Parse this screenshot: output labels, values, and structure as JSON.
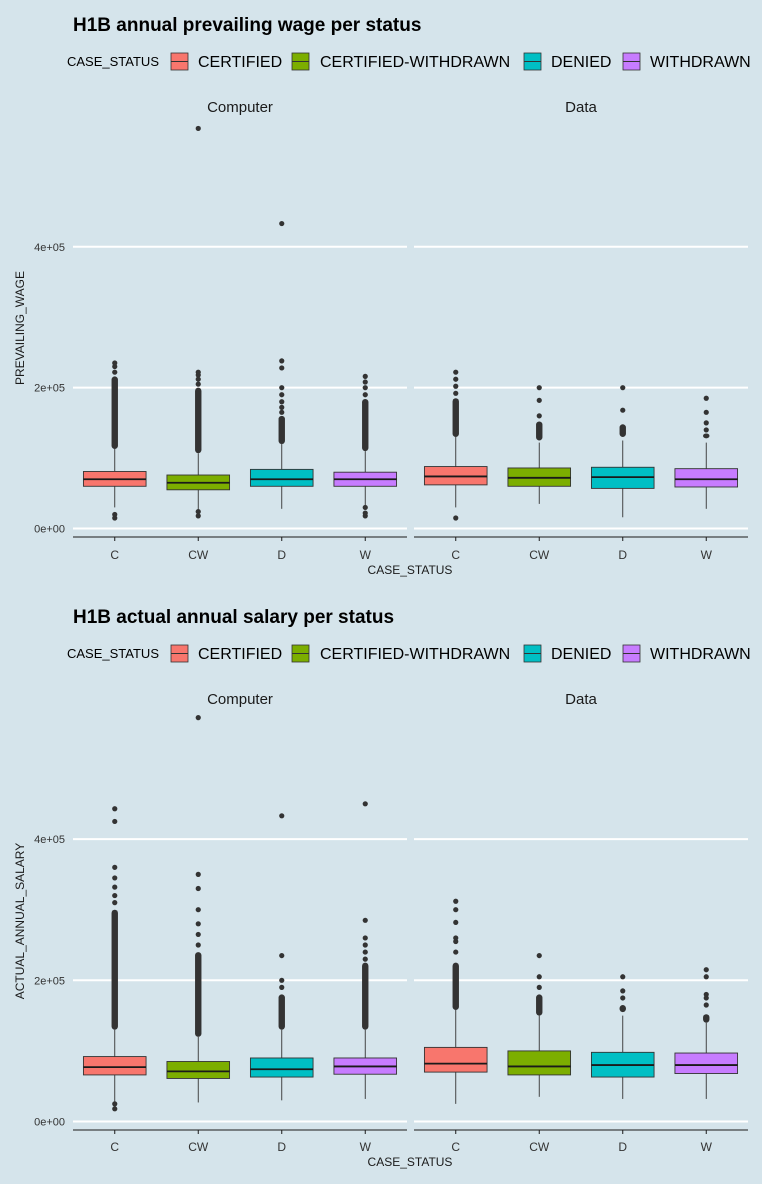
{
  "colors": {
    "background": "#d5e4eb",
    "grid": "#ffffff",
    "axis": "#1a1a1a",
    "outlier": "#333333",
    "CERTIFIED": "#f8766d",
    "CERTIFIED-WITHDRAWN": "#7cae00",
    "DENIED": "#00bfc4",
    "WITHDRAWN": "#c77cff"
  },
  "chart_data": [
    {
      "type": "box",
      "title": "H1B annual prevailing wage per status",
      "xlabel": "CASE_STATUS",
      "ylabel": "PREVAILING_WAGE",
      "legend": {
        "title": "CASE_STATUS",
        "position": "top",
        "entries": [
          "CERTIFIED",
          "CERTIFIED-WITHDRAWN",
          "DENIED",
          "WITHDRAWN"
        ]
      },
      "categories": [
        "C",
        "CW",
        "D",
        "W"
      ],
      "y_ticks": [
        {
          "value": 0,
          "label": "0e+00"
        },
        {
          "value": 200000,
          "label": "2e+05"
        },
        {
          "value": 400000,
          "label": "4e+05"
        }
      ],
      "ylim": [
        -12000,
        580000
      ],
      "grid": true,
      "facets": [
        {
          "label": "Computer",
          "boxes": [
            {
              "status": "CERTIFIED",
              "q1": 60000,
              "median": 70000,
              "q3": 81000,
              "whisker_low": 30000,
              "whisker_high": 113000,
              "outlier_band": [
                113000,
                216000
              ],
              "outliers": [
                15000,
                20000,
                222000,
                230000,
                235000
              ]
            },
            {
              "status": "CERTIFIED-WITHDRAWN",
              "q1": 55000,
              "median": 65000,
              "q3": 76000,
              "whisker_low": 26000,
              "whisker_high": 107000,
              "outlier_band": [
                107000,
                200000
              ],
              "outliers": [
                18000,
                24000,
                205000,
                212000,
                218000,
                222000,
                568000
              ]
            },
            {
              "status": "DENIED",
              "q1": 60000,
              "median": 70000,
              "q3": 84000,
              "whisker_low": 28000,
              "whisker_high": 120000,
              "outlier_band": [
                120000,
                160000
              ],
              "outliers": [
                165000,
                172000,
                180000,
                190000,
                200000,
                228000,
                238000,
                433000
              ]
            },
            {
              "status": "WITHDRAWN",
              "q1": 60000,
              "median": 70000,
              "q3": 80000,
              "whisker_low": 30000,
              "whisker_high": 110000,
              "outlier_band": [
                110000,
                184000
              ],
              "outliers": [
                18000,
                22000,
                30000,
                190000,
                200000,
                208000,
                216000
              ]
            }
          ]
        },
        {
          "label": "Data",
          "boxes": [
            {
              "status": "CERTIFIED",
              "q1": 62000,
              "median": 74000,
              "q3": 88000,
              "whisker_low": 30000,
              "whisker_high": 130000,
              "outlier_band": [
                130000,
                185000
              ],
              "outliers": [
                15000,
                192000,
                202000,
                212000,
                222000
              ]
            },
            {
              "status": "CERTIFIED-WITHDRAWN",
              "q1": 60000,
              "median": 72000,
              "q3": 86000,
              "whisker_low": 35000,
              "whisker_high": 122000,
              "outlier_band": [
                125000,
                152000
              ],
              "outliers": [
                160000,
                182000,
                200000
              ]
            },
            {
              "status": "DENIED",
              "q1": 57000,
              "median": 73000,
              "q3": 87000,
              "whisker_low": 16000,
              "whisker_high": 125000,
              "outlier_band": [
                130000,
                148000
              ],
              "outliers": [
                168000,
                200000
              ]
            },
            {
              "status": "WITHDRAWN",
              "q1": 59000,
              "median": 70000,
              "q3": 85000,
              "whisker_low": 28000,
              "whisker_high": 122000,
              "outlier_band": [
                128000,
                135000
              ],
              "outliers": [
                140000,
                150000,
                165000,
                185000
              ]
            }
          ]
        }
      ]
    },
    {
      "type": "box",
      "title": "H1B actual annual salary per status",
      "xlabel": "CASE_STATUS",
      "ylabel": "ACTUAL_ANNUAL_SALARY",
      "legend": {
        "title": "CASE_STATUS",
        "position": "top",
        "entries": [
          "CERTIFIED",
          "CERTIFIED-WITHDRAWN",
          "DENIED",
          "WITHDRAWN"
        ]
      },
      "categories": [
        "C",
        "CW",
        "D",
        "W"
      ],
      "y_ticks": [
        {
          "value": 0,
          "label": "0e+00"
        },
        {
          "value": 200000,
          "label": "2e+05"
        },
        {
          "value": 400000,
          "label": "4e+05"
        }
      ],
      "ylim": [
        -12000,
        580000
      ],
      "grid": true,
      "facets": [
        {
          "label": "Computer",
          "boxes": [
            {
              "status": "CERTIFIED",
              "q1": 66000,
              "median": 77000,
              "q3": 92000,
              "whisker_low": 28000,
              "whisker_high": 130000,
              "outlier_band": [
                130000,
                300000
              ],
              "outliers": [
                18000,
                25000,
                310000,
                320000,
                332000,
                345000,
                360000,
                425000,
                443000
              ]
            },
            {
              "status": "CERTIFIED-WITHDRAWN",
              "q1": 61000,
              "median": 71000,
              "q3": 85000,
              "whisker_low": 27000,
              "whisker_high": 120000,
              "outlier_band": [
                120000,
                240000
              ],
              "outliers": [
                250000,
                265000,
                280000,
                300000,
                330000,
                350000,
                572000
              ]
            },
            {
              "status": "DENIED",
              "q1": 63000,
              "median": 74000,
              "q3": 90000,
              "whisker_low": 30000,
              "whisker_high": 130000,
              "outlier_band": [
                130000,
                180000
              ],
              "outliers": [
                190000,
                200000,
                235000,
                433000
              ]
            },
            {
              "status": "WITHDRAWN",
              "q1": 67000,
              "median": 78000,
              "q3": 90000,
              "whisker_low": 32000,
              "whisker_high": 130000,
              "outlier_band": [
                130000,
                225000
              ],
              "outliers": [
                230000,
                240000,
                250000,
                260000,
                285000,
                450000
              ]
            }
          ]
        },
        {
          "label": "Data",
          "boxes": [
            {
              "status": "CERTIFIED",
              "q1": 70000,
              "median": 82000,
              "q3": 105000,
              "whisker_low": 25000,
              "whisker_high": 158000,
              "outlier_band": [
                158000,
                225000
              ],
              "outliers": [
                240000,
                255000,
                260000,
                282000,
                300000,
                312000
              ]
            },
            {
              "status": "CERTIFIED-WITHDRAWN",
              "q1": 66000,
              "median": 78000,
              "q3": 100000,
              "whisker_low": 35000,
              "whisker_high": 150000,
              "outlier_band": [
                150000,
                180000
              ],
              "outliers": [
                190000,
                205000,
                235000
              ]
            },
            {
              "status": "DENIED",
              "q1": 63000,
              "median": 80000,
              "q3": 98000,
              "whisker_low": 32000,
              "whisker_high": 150000,
              "outlier_band": [
                155000,
                165000
              ],
              "outliers": [
                175000,
                185000,
                205000
              ]
            },
            {
              "status": "WITHDRAWN",
              "q1": 68000,
              "median": 80000,
              "q3": 97000,
              "whisker_low": 32000,
              "whisker_high": 140000,
              "outlier_band": [
                140000,
                152000
              ],
              "outliers": [
                165000,
                175000,
                180000,
                205000,
                215000
              ]
            }
          ]
        }
      ]
    }
  ]
}
